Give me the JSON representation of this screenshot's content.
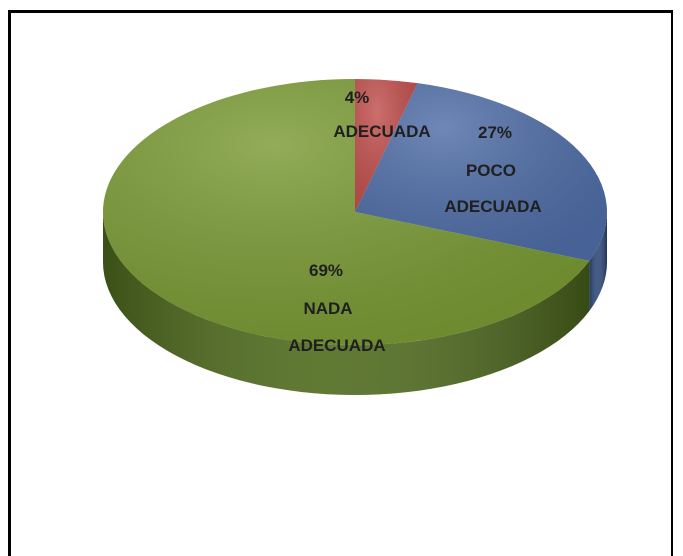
{
  "chart_data": {
    "type": "pie",
    "style": "3d",
    "title": "",
    "slices": [
      {
        "label": "ADECUADA",
        "percent_label": "4%",
        "value": 4,
        "color": "#c0504d",
        "side_color": "#8c2f2c"
      },
      {
        "label": "POCO ADECUADA",
        "percent_label": "27%",
        "value": 27,
        "color": "#4f6da6",
        "side_color": "#2f4a7a"
      },
      {
        "label": "NADA ADECUADA",
        "percent_label": "69%",
        "value": 69,
        "color": "#7a9a35",
        "side_color": "#4e6a1c"
      }
    ],
    "legend": "none",
    "start_angle_deg": 90,
    "direction": "clockwise"
  },
  "labels": {
    "adecuada_pct": "4%",
    "adecuada_name": "ADECUADA",
    "poco_pct": "27%",
    "poco_line1": "POCO",
    "poco_line2": "ADECUADA",
    "nada_pct": "69%",
    "nada_line1": "NADA",
    "nada_line2": "ADECUADA"
  }
}
